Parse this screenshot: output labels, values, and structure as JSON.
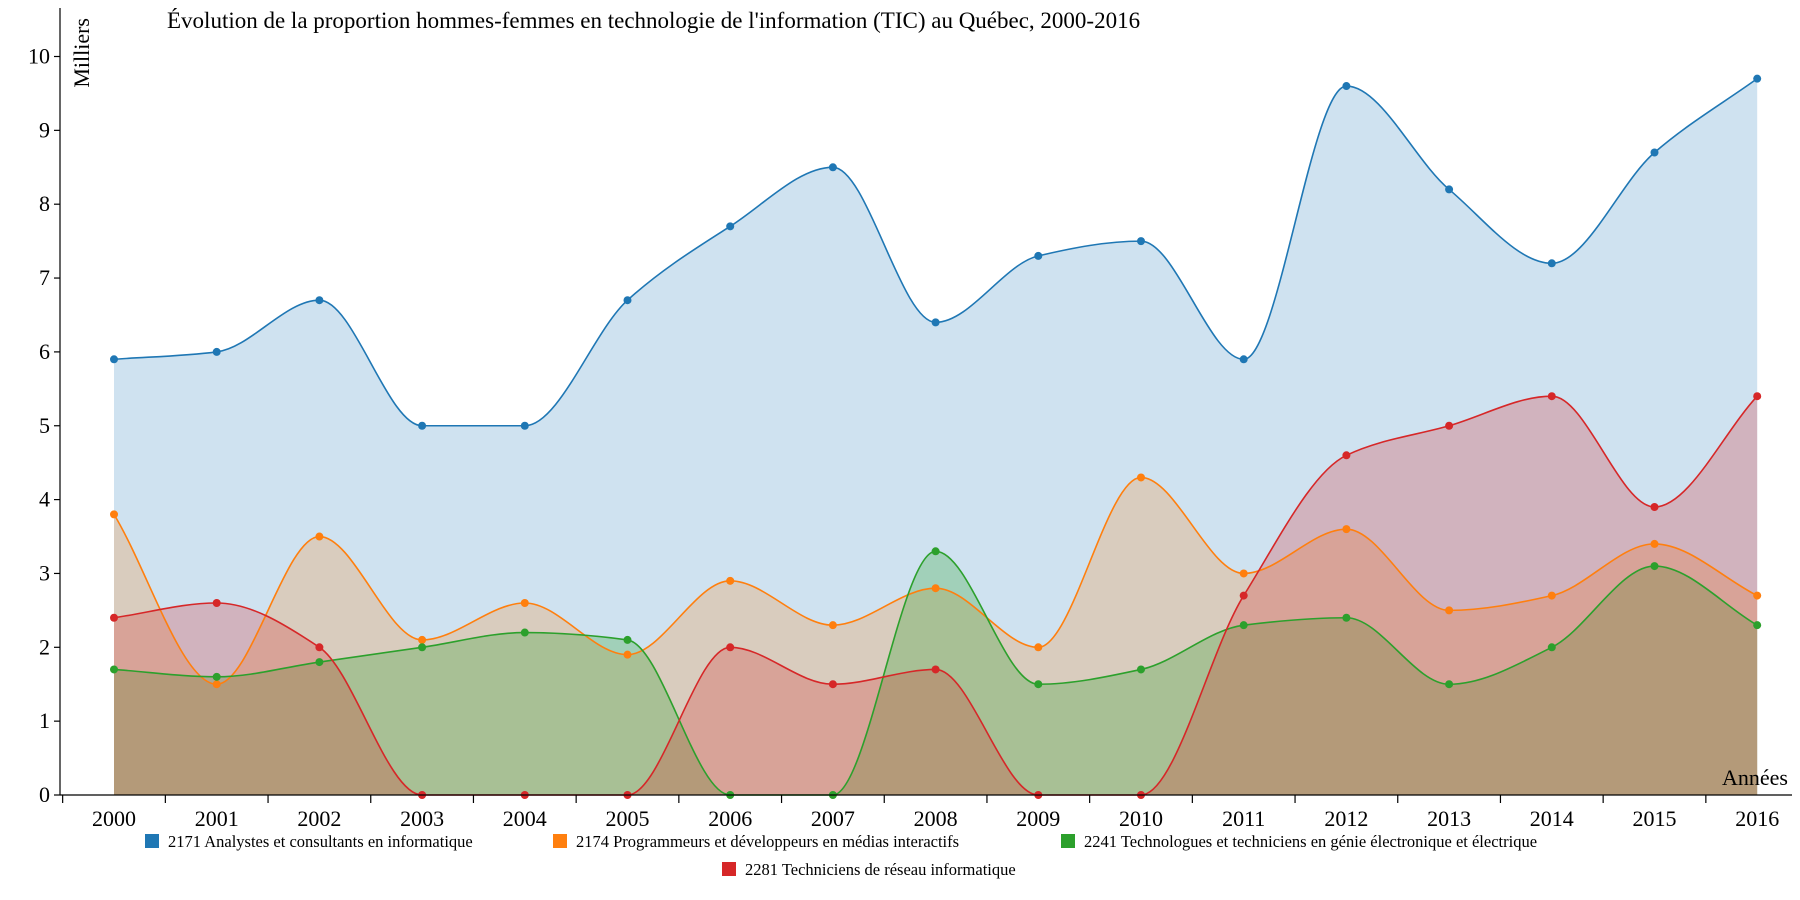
{
  "chart_data": {
    "type": "area",
    "title": "Évolution de la proportion hommes-femmes en technologie de l'information (TIC) au Québec, 2000-2016",
    "xlabel": "Années",
    "ylabel": "Milliers",
    "ylim": [
      0,
      10.5
    ],
    "y_ticks": [
      "0",
      "1",
      "2",
      "3",
      "4",
      "5",
      "6",
      "7",
      "8",
      "9",
      "10"
    ],
    "grid": false,
    "legend_position": "bottom",
    "categories": [
      "2000",
      "2001",
      "2002",
      "2003",
      "2004",
      "2005",
      "2006",
      "2007",
      "2008",
      "2009",
      "2010",
      "2011",
      "2012",
      "2013",
      "2014",
      "2015",
      "2016"
    ],
    "series": [
      {
        "name": "2171 Analystes et consultants en informatique",
        "color": "#1f77b4",
        "fill": "#cfe2f0",
        "values": [
          5.9,
          6.0,
          6.7,
          5.0,
          5.0,
          6.7,
          7.7,
          8.5,
          6.4,
          7.3,
          7.5,
          5.9,
          9.6,
          8.2,
          7.2,
          8.7,
          9.7
        ]
      },
      {
        "name": "2174 Programmeurs et développeurs en médias interactifs",
        "color": "#ff7f0e",
        "fill": "rgba(255,127,14,0.22)",
        "values": [
          3.8,
          1.5,
          3.5,
          2.1,
          2.6,
          1.9,
          2.9,
          2.3,
          2.8,
          2.0,
          4.3,
          3.0,
          3.6,
          2.5,
          2.7,
          3.4,
          2.7
        ]
      },
      {
        "name": "2241 Technologues et techniciens en génie électronique et électrique",
        "color": "#2ca02c",
        "fill": "rgba(44,160,44,0.28)",
        "values": [
          1.7,
          1.6,
          1.8,
          2.0,
          2.2,
          2.1,
          0,
          0,
          3.3,
          1.5,
          1.7,
          2.3,
          2.4,
          1.5,
          2.0,
          3.1,
          2.3
        ]
      },
      {
        "name": "2281 Techniciens de réseau informatique",
        "color": "#d62728",
        "fill": "rgba(214,39,40,0.25)",
        "values": [
          2.4,
          2.6,
          2.0,
          0,
          0,
          0,
          2.0,
          1.5,
          1.7,
          0,
          0,
          2.7,
          4.6,
          5.0,
          5.4,
          3.9,
          5.4
        ]
      }
    ]
  }
}
